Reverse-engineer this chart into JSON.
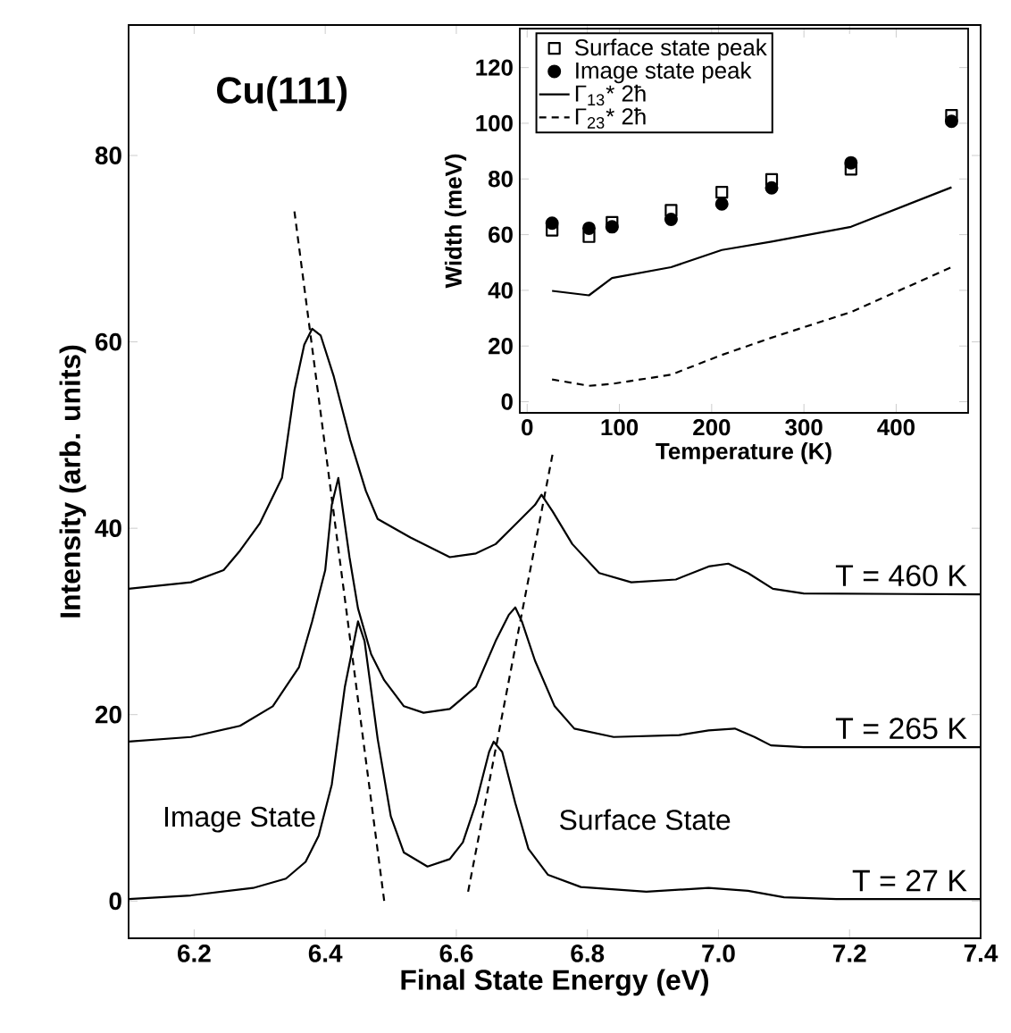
{
  "chart_data": [
    {
      "type": "line",
      "title": "Cu(111)",
      "xlabel": "Final State Energy (eV)",
      "ylabel": "Intensity (arb. units)",
      "xlim": [
        6.1,
        7.4
      ],
      "ylim": [
        -4,
        94
      ],
      "xticks": [
        6.2,
        6.4,
        6.6,
        6.8,
        {
          "value": 7,
          "label": "7.0"
        },
        7.2,
        7.4
      ],
      "yticks": [
        0,
        20,
        40,
        60,
        80
      ],
      "annotations": [
        "Image State",
        "Surface State"
      ],
      "series": [
        {
          "name": "T = 460 K",
          "color": "#000000",
          "x": [
            6.1,
            6.195,
            6.245,
            6.27,
            6.3,
            6.334,
            6.353,
            6.368,
            6.38,
            6.393,
            6.413,
            6.438,
            6.462,
            6.48,
            6.53,
            6.59,
            6.63,
            6.66,
            6.69,
            6.72,
            6.73,
            6.747,
            6.777,
            6.818,
            6.867,
            6.935,
            6.985,
            7.015,
            7.045,
            7.083,
            7.13,
            7.4
          ],
          "values": [
            33.5,
            34.2,
            35.5,
            37.6,
            40.5,
            45.4,
            54.8,
            59.7,
            61.4,
            60.7,
            56.3,
            49.5,
            44,
            41,
            39,
            36.9,
            37.3,
            38.3,
            40.4,
            42.5,
            43.6,
            41.8,
            38.3,
            35.2,
            34.2,
            34.5,
            35.9,
            36.2,
            35.2,
            33.5,
            33,
            32.9
          ]
        },
        {
          "name": "T = 265 K",
          "color": "#000000",
          "x": [
            6.1,
            6.195,
            6.27,
            6.32,
            6.36,
            6.38,
            6.4,
            6.41,
            6.42,
            6.437,
            6.45,
            6.47,
            6.49,
            6.52,
            6.55,
            6.59,
            6.63,
            6.66,
            6.68,
            6.69,
            6.7,
            6.72,
            6.75,
            6.78,
            6.84,
            6.94,
            6.985,
            7.025,
            7.055,
            7.08,
            7.13,
            7.4
          ],
          "values": [
            17.1,
            17.6,
            18.8,
            20.9,
            25.1,
            30,
            35.5,
            42.5,
            45.4,
            36.9,
            31.4,
            26.5,
            23.7,
            20.9,
            20.2,
            20.6,
            23,
            27.9,
            30.7,
            31.5,
            30,
            25.8,
            20.9,
            18.5,
            17.6,
            17.8,
            18.3,
            18.5,
            17.6,
            16.7,
            16.5,
            16.5
          ]
        },
        {
          "name": "T = 27 K",
          "color": "#000000",
          "x": [
            6.1,
            6.195,
            6.29,
            6.34,
            6.37,
            6.39,
            6.41,
            6.43,
            6.45,
            6.46,
            6.48,
            6.5,
            6.52,
            6.556,
            6.59,
            6.61,
            6.63,
            6.65,
            6.657,
            6.67,
            6.69,
            6.71,
            6.74,
            6.79,
            6.89,
            6.985,
            7.045,
            7.1,
            7.18,
            7.4
          ],
          "values": [
            0.2,
            0.6,
            1.4,
            2.4,
            4.2,
            7.0,
            12.5,
            23,
            30,
            27.9,
            17.4,
            9.1,
            5.2,
            3.7,
            4.5,
            6.3,
            10.5,
            16,
            17.1,
            16,
            10.5,
            5.6,
            2.8,
            1.5,
            1.0,
            1.4,
            1.1,
            0.4,
            0.2,
            0.2
          ]
        },
        {
          "color": "#000000",
          "line_style": "dashed",
          "x": [
            6.353,
            6.49
          ],
          "values": [
            74,
            0
          ]
        },
        {
          "color": "#000000",
          "line_style": "dashed",
          "x": [
            6.618,
            6.747
          ],
          "values": [
            1,
            48
          ]
        }
      ]
    },
    {
      "type": "scatter",
      "xlabel": "Temperature (K)",
      "ylabel": "Width (meV)",
      "xlim": [
        -8,
        478
      ],
      "ylim": [
        -4,
        134
      ],
      "xticks": [
        0,
        100,
        200,
        300,
        400
      ],
      "yticks": [
        0,
        20,
        40,
        60,
        80,
        100,
        120
      ],
      "legend": "top left",
      "x": [
        27,
        67,
        92,
        156,
        211,
        265,
        351,
        460
      ],
      "series": [
        {
          "name": "Surface state peak",
          "color": "#000000",
          "marker": "square",
          "values": [
            61.6,
            59.3,
            64.4,
            68.7,
            75.2,
            79.8,
            83.5,
            102.8
          ]
        },
        {
          "name": "Image state peak",
          "color": "#000000",
          "marker": "circle",
          "values": [
            64.1,
            62.3,
            62.8,
            65.5,
            71,
            76.8,
            85.8,
            100.7
          ]
        },
        {
          "name": "Γ$_{13}$* 2ħ",
          "type": "line",
          "color": "#000000",
          "line_style": "solid",
          "values": [
            39.8,
            38.2,
            44.4,
            48.3,
            54.5,
            57.5,
            62.8,
            77.0
          ]
        },
        {
          "name": "Γ$_{23}$* 2ħ",
          "type": "line",
          "color": "#000000",
          "line_style": "dashed",
          "values": [
            8.0,
            5.7,
            6.4,
            9.7,
            16.8,
            23,
            32.2,
            48.3
          ]
        }
      ]
    }
  ]
}
